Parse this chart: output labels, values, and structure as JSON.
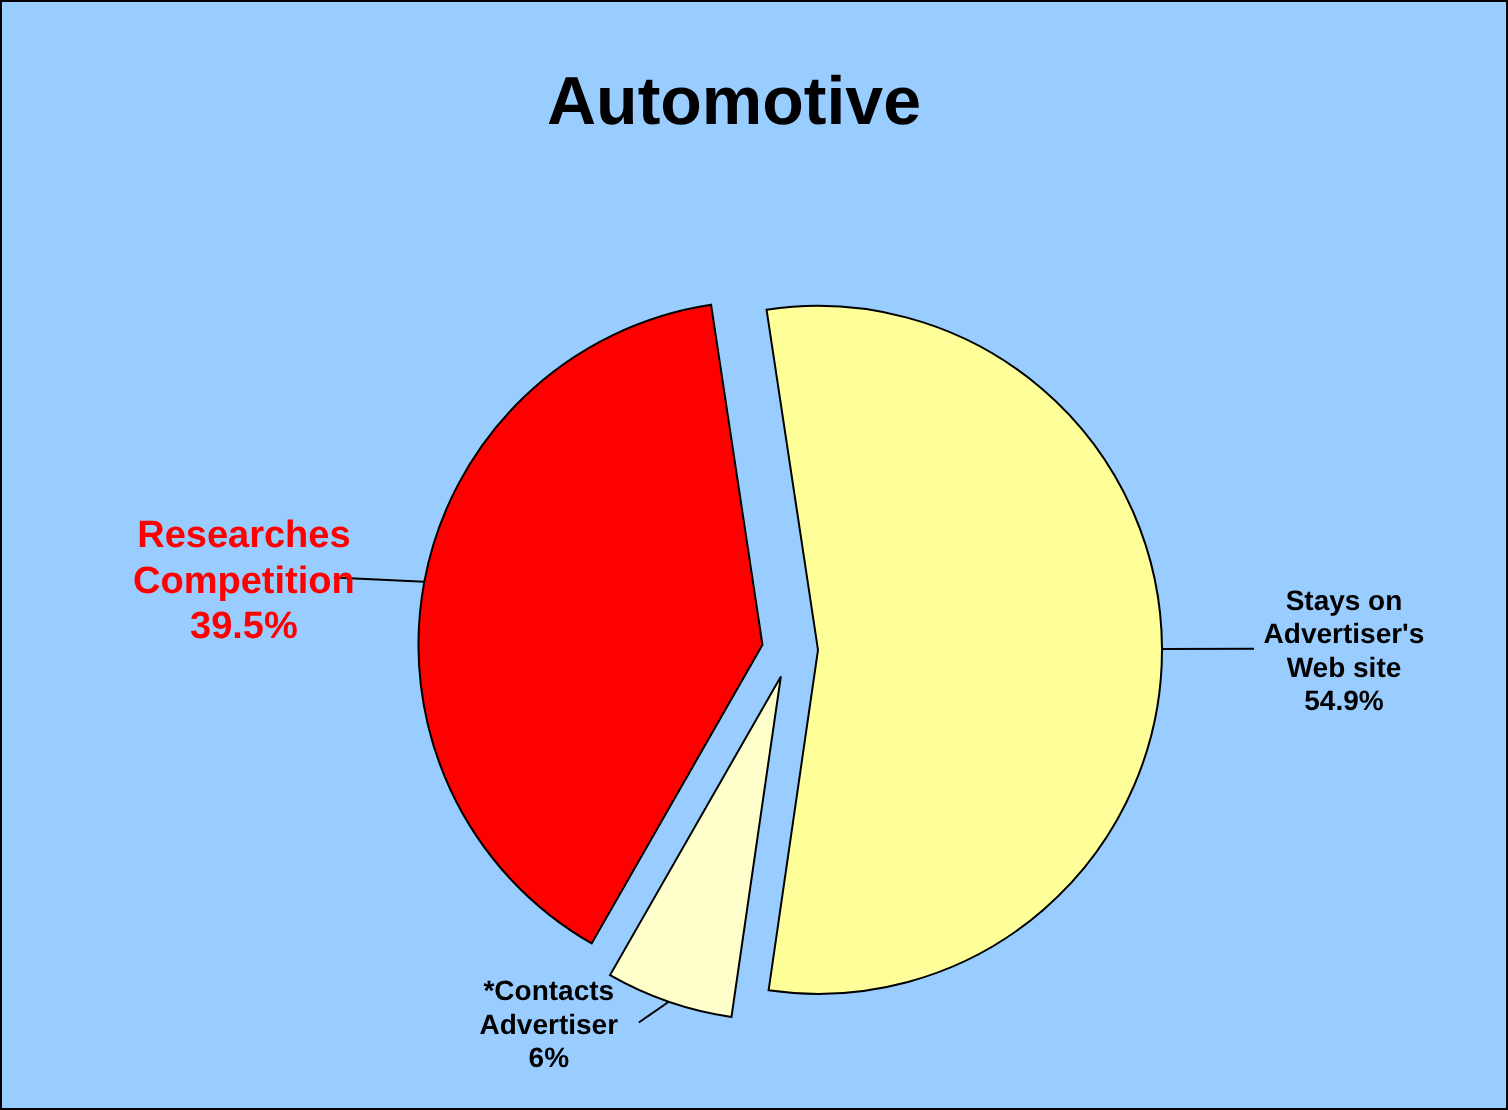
{
  "chart_data": {
    "type": "pie",
    "title": "Automotive",
    "categories": [
      "Stays on Advertiser's Web site",
      "*Contacts Advertiser",
      "Researches Competition"
    ],
    "values": [
      54.9,
      6,
      39.5
    ],
    "colors": [
      "#ffff99",
      "#ffffcc",
      "#ff0000"
    ],
    "value_labels": [
      "54.9%",
      "6%",
      "39.5%"
    ]
  }
}
